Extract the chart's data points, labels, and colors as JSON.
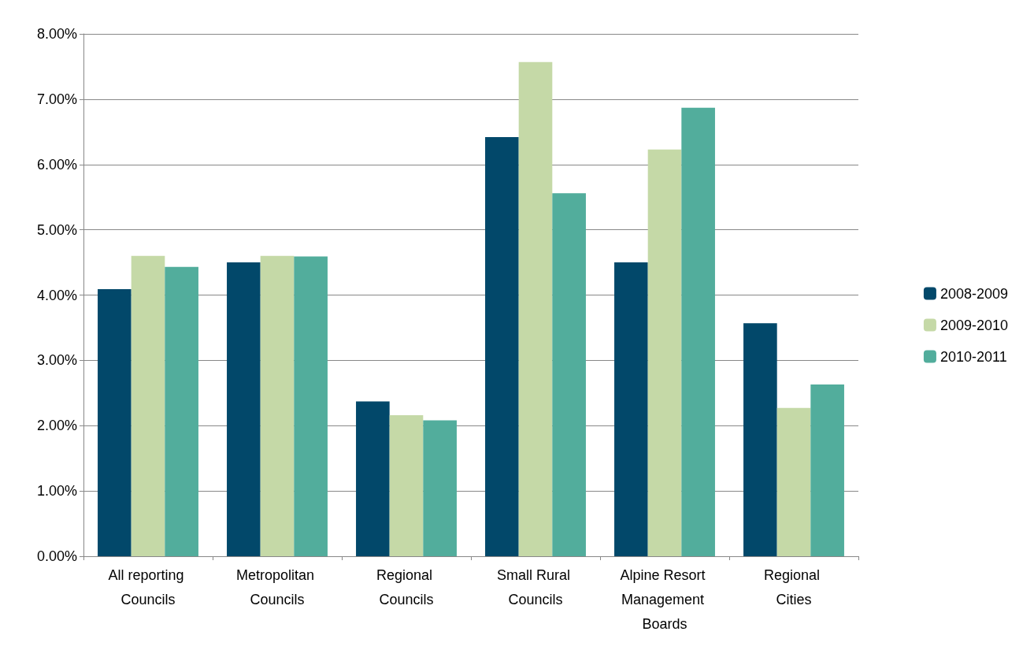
{
  "chart_data": {
    "type": "bar",
    "categories": [
      "All reporting Councils",
      "Metropolitan Councils",
      "Regional Councils",
      "Small Rural Councils",
      "Alpine Resort Management Boards",
      "Regional Cities"
    ],
    "series": [
      {
        "name": "2008-2009",
        "color": "#02486a",
        "values": [
          4.09,
          4.5,
          2.37,
          6.42,
          4.5,
          3.57
        ]
      },
      {
        "name": "2009-2010",
        "color": "#c5d9a7",
        "values": [
          4.6,
          4.6,
          2.16,
          7.57,
          6.23,
          2.27
        ]
      },
      {
        "name": "2010-2011",
        "color": "#52ad9c",
        "values": [
          4.43,
          4.59,
          2.08,
          5.56,
          6.87,
          2.63
        ]
      }
    ],
    "ylim": [
      0,
      8
    ],
    "yticks": [
      {
        "value": 0,
        "label": "0.00%"
      },
      {
        "value": 1,
        "label": "1.00%"
      },
      {
        "value": 2,
        "label": "2.00%"
      },
      {
        "value": 3,
        "label": "3.00%"
      },
      {
        "value": 4,
        "label": "4.00%"
      },
      {
        "value": 5,
        "label": "5.00%"
      },
      {
        "value": 6,
        "label": "6.00%"
      },
      {
        "value": 7,
        "label": "7.00%"
      },
      {
        "value": 8,
        "label": "8.00%"
      }
    ],
    "grid": "y",
    "legend": "right"
  }
}
